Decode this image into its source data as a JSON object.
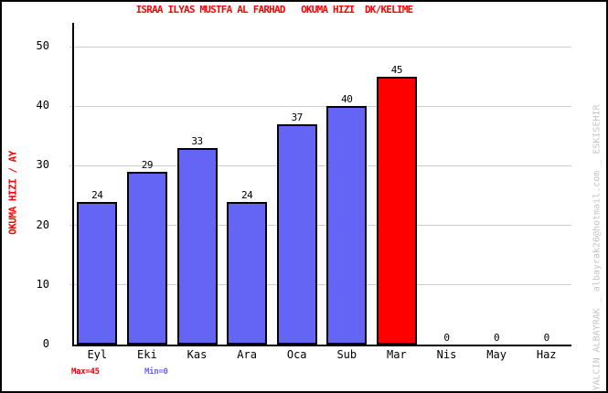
{
  "title": "ISRAA ILYAS MUSTFA AL FARHAD   OKUMA HIZI  DK/KELIME",
  "watermark": "YALCIN ALBAYRAK _ albayrak26@hotmail.com _ ESKISEHIR",
  "footer": {
    "max_label": "Max=45",
    "min_label": "Min=0"
  },
  "colors": {
    "title": "#ff0000",
    "ylabel": "#ff0000",
    "bar_fill": "#6565f5",
    "bar_max_fill": "#ff0000",
    "bar_border": "#000000",
    "grid": "#cccccc",
    "axis": "#000000",
    "max_label": "#e60000",
    "min_label": "#6565f5",
    "watermark": "#c4c4c4"
  },
  "chart_data": {
    "type": "bar",
    "title": "ISRAA ILYAS MUSTFA AL FARHAD   OKUMA HIZI  DK/KELIME",
    "ylabel": "OKUMA HIZI / AY",
    "xlabel": "",
    "categories": [
      "Eyl",
      "Eki",
      "Kas",
      "Ara",
      "Oca",
      "Sub",
      "Mar",
      "Nis",
      "May",
      "Haz"
    ],
    "values": [
      24,
      29,
      33,
      24,
      37,
      40,
      45,
      0,
      0,
      0
    ],
    "yticks": [
      0,
      10,
      20,
      30,
      40,
      50
    ],
    "ylim": [
      0,
      54
    ],
    "grid": true,
    "legend": null,
    "highlight_index": 6,
    "annotations": [
      "Max=45",
      "Min=0"
    ]
  }
}
